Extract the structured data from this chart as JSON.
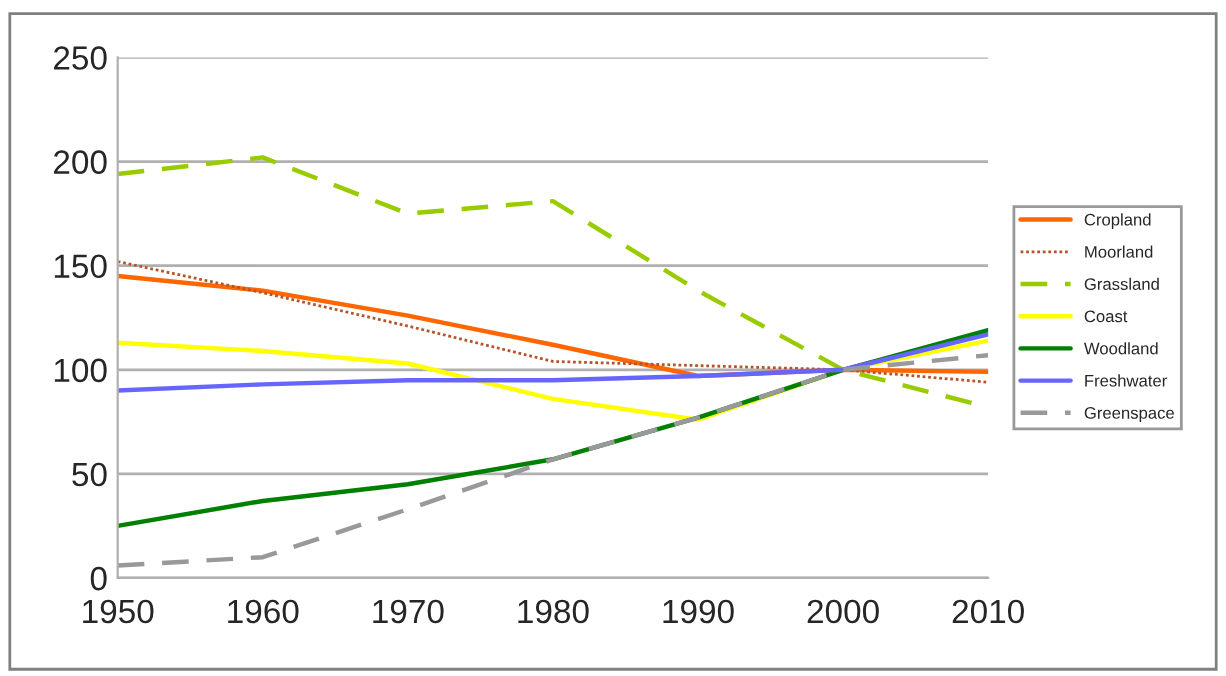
{
  "chart_data": {
    "type": "line",
    "x": [
      1950,
      1960,
      1970,
      1980,
      1990,
      2000,
      2010
    ],
    "xlim": [
      1950,
      2010
    ],
    "xticks": [
      1950,
      1960,
      1970,
      1980,
      1990,
      2000,
      2010
    ],
    "ylim": [
      0,
      250
    ],
    "yticks": [
      0,
      50,
      100,
      150,
      200,
      250
    ],
    "grid": "y",
    "legend": "right",
    "marker": "none",
    "series": [
      {
        "name": "Cropland",
        "color": "#ff6600",
        "line_style": "solid",
        "values": [
          145,
          138,
          126,
          112,
          97,
          100,
          99
        ]
      },
      {
        "name": "Moorland",
        "color": "#b5532a",
        "line_style": "dotted",
        "values": [
          152,
          137,
          121,
          104,
          102,
          100,
          94
        ]
      },
      {
        "name": "Grassland",
        "color": "#99cc00",
        "line_style": "dashed",
        "values": [
          194,
          202,
          175,
          181,
          138,
          100,
          82
        ]
      },
      {
        "name": "Coast",
        "color": "#ffff00",
        "line_style": "solid",
        "values": [
          113,
          109,
          103,
          86,
          76,
          100,
          114
        ]
      },
      {
        "name": "Woodland",
        "color": "#008000",
        "line_style": "solid",
        "values": [
          25,
          37,
          45,
          57,
          77,
          100,
          119
        ]
      },
      {
        "name": "Freshwater",
        "color": "#6666ff",
        "line_style": "solid",
        "values": [
          90,
          93,
          95,
          95,
          97,
          100,
          117
        ]
      },
      {
        "name": "Greenspace",
        "color": "#999999",
        "line_style": "dashed",
        "values": [
          6,
          10,
          33,
          57,
          77,
          100,
          107
        ]
      }
    ]
  }
}
